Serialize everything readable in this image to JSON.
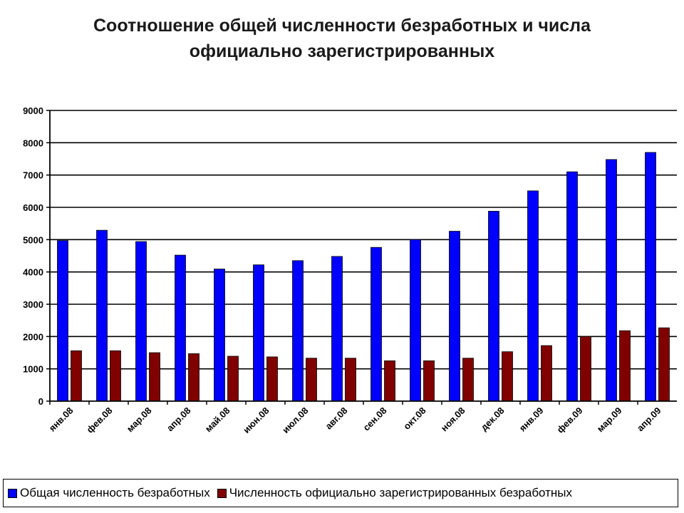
{
  "chart_data": {
    "type": "bar",
    "title": "Соотношение общей численности безработных и числа официально зарегистрированных",
    "title_lines": [
      "Соотношение общей численности безработных и числа",
      "официально зарегистрированных"
    ],
    "categories": [
      "янв.08",
      "фев.08",
      "мар.08",
      "апр.08",
      "май.08",
      "июн.08",
      "июл.08",
      "авг.08",
      "сен.08",
      "окт.08",
      "ноя.08",
      "дек.08",
      "янв.09",
      "фев.09",
      "мар.09",
      "апр.09"
    ],
    "series": [
      {
        "name": "Общая численность безработных",
        "color": "#0000ff",
        "values": [
          4970,
          5290,
          4940,
          4520,
          4090,
          4220,
          4350,
          4480,
          4760,
          5000,
          5260,
          5880,
          6510,
          7100,
          7480,
          7700
        ]
      },
      {
        "name": "Численность официально зарегистрированных безработных",
        "color": "#800000",
        "values": [
          1560,
          1560,
          1500,
          1470,
          1390,
          1370,
          1330,
          1330,
          1250,
          1250,
          1330,
          1530,
          1720,
          2000,
          2180,
          2270
        ]
      }
    ],
    "ylim": [
      0,
      9000
    ],
    "yticks": [
      0,
      1000,
      2000,
      3000,
      4000,
      5000,
      6000,
      7000,
      8000,
      9000
    ],
    "grid": true,
    "legend_position": "bottom",
    "xlabel": "",
    "ylabel": ""
  }
}
